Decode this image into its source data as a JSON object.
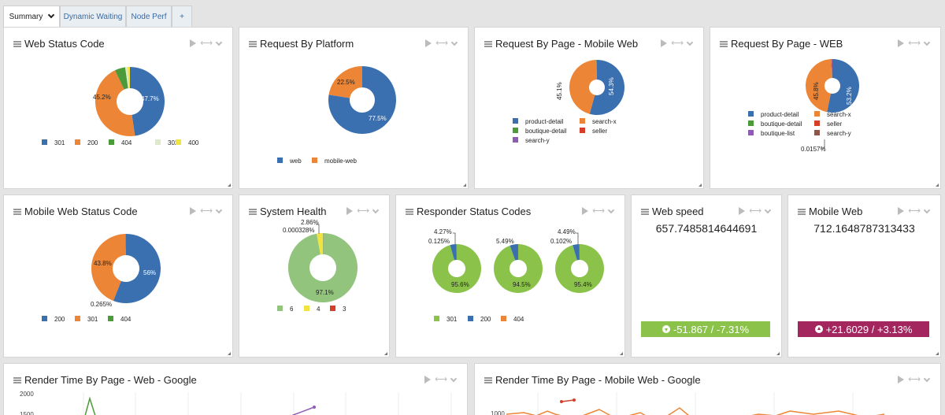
{
  "tabs": [
    {
      "label": "Summary"
    },
    {
      "label": "Dynamic Waiting"
    },
    {
      "label": "Node Perf"
    },
    {
      "label": "+"
    }
  ],
  "colors": {
    "blue": "#3a70b0",
    "orange": "#ec8636",
    "green": "#4c9a3a",
    "lightgreen": "#93c47d",
    "yellow": "#f0e442",
    "red": "#d43f2a",
    "purple": "#8e5bb5",
    "brown": "#8c564b",
    "lime": "#8bc34a",
    "magenta": "#a3265f"
  },
  "panels": {
    "web_status": {
      "title": "Web Status Code",
      "legend": [
        "301",
        "200",
        "404",
        "302",
        "400"
      ],
      "labels": [
        "47.7%",
        "45.2%"
      ]
    },
    "platform": {
      "title": "Request By Platform",
      "legend": [
        "web",
        "mobile-web"
      ],
      "labels": [
        "77.5%",
        "22.5%"
      ]
    },
    "page_mobile": {
      "title": "Request By Page - Mobile Web",
      "legend": [
        "product-detail",
        "search-x",
        "boutique-detail",
        "seller",
        "search-y"
      ],
      "labels": [
        "54.3%",
        "45.1%"
      ]
    },
    "page_web": {
      "title": "Request By Page - WEB",
      "legend": [
        "product-detail",
        "search-x",
        "boutique-detail",
        "seller",
        "boutique-list",
        "search-y"
      ],
      "labels": [
        "53.2%",
        "45.8%",
        "0.0157%"
      ]
    },
    "mobile_status": {
      "title": "Mobile Web Status Code",
      "legend": [
        "200",
        "301",
        "404"
      ],
      "labels": [
        "56%",
        "43.8%",
        "0.265%"
      ]
    },
    "health": {
      "title": "System Health",
      "legend": [
        "6",
        "4",
        "3"
      ],
      "labels": [
        "97.1%",
        "2.86%",
        "0.000328%"
      ]
    },
    "responder": {
      "title": "Responder Status Codes",
      "legend": [
        "301",
        "200",
        "404"
      ],
      "donuts": [
        {
          "labels": [
            "95.6%",
            "4.27%",
            "0.125%"
          ]
        },
        {
          "labels": [
            "94.5%",
            "5.49%"
          ]
        },
        {
          "labels": [
            "95.4%",
            "4.49%",
            "0.102%"
          ]
        }
      ]
    },
    "web_speed": {
      "title": "Web speed",
      "value": "657.7485814644691",
      "delta": "-51.867 / -7.31%"
    },
    "mobile_web": {
      "title": "Mobile Web",
      "value": "712.1648787313433",
      "delta": "+21.6029 / +3.13%"
    },
    "render_web": {
      "title": "Render Time By Page - Web - Google",
      "yticks": [
        "2000",
        "1500"
      ]
    },
    "render_mobile": {
      "title": "Render Time By Page - Mobile Web - Google",
      "yticks": [
        "1000"
      ]
    }
  },
  "chart_data": [
    {
      "type": "pie",
      "title": "Web Status Code",
      "categories": [
        "301",
        "200",
        "404",
        "302",
        "400"
      ],
      "values": [
        47.7,
        45.2,
        4.9,
        1.1,
        1.1
      ]
    },
    {
      "type": "pie",
      "title": "Request By Platform",
      "categories": [
        "web",
        "mobile-web"
      ],
      "values": [
        77.5,
        22.5
      ]
    },
    {
      "type": "pie",
      "title": "Request By Page - Mobile Web",
      "categories": [
        "product-detail",
        "search-x",
        "boutique-detail",
        "seller",
        "search-y"
      ],
      "values": [
        54.3,
        45.1,
        0.2,
        0.2,
        0.2
      ]
    },
    {
      "type": "pie",
      "title": "Request By Page - WEB",
      "categories": [
        "product-detail",
        "search-x",
        "boutique-detail",
        "seller",
        "boutique-list",
        "search-y"
      ],
      "values": [
        53.2,
        45.8,
        0.3,
        0.3,
        0.3,
        0.0157
      ]
    },
    {
      "type": "pie",
      "title": "Mobile Web Status Code",
      "categories": [
        "200",
        "301",
        "404"
      ],
      "values": [
        56,
        43.8,
        0.265
      ]
    },
    {
      "type": "pie",
      "title": "System Health",
      "categories": [
        "6",
        "4",
        "3"
      ],
      "values": [
        97.1,
        2.86,
        0.000328
      ]
    },
    {
      "type": "pie",
      "title": "Responder Status Codes",
      "categories": [
        "301",
        "200",
        "404"
      ],
      "series": [
        {
          "values": [
            95.6,
            4.27,
            0.125
          ]
        },
        {
          "values": [
            94.5,
            5.49,
            0.01
          ]
        },
        {
          "values": [
            95.4,
            4.49,
            0.102
          ]
        }
      ]
    }
  ]
}
